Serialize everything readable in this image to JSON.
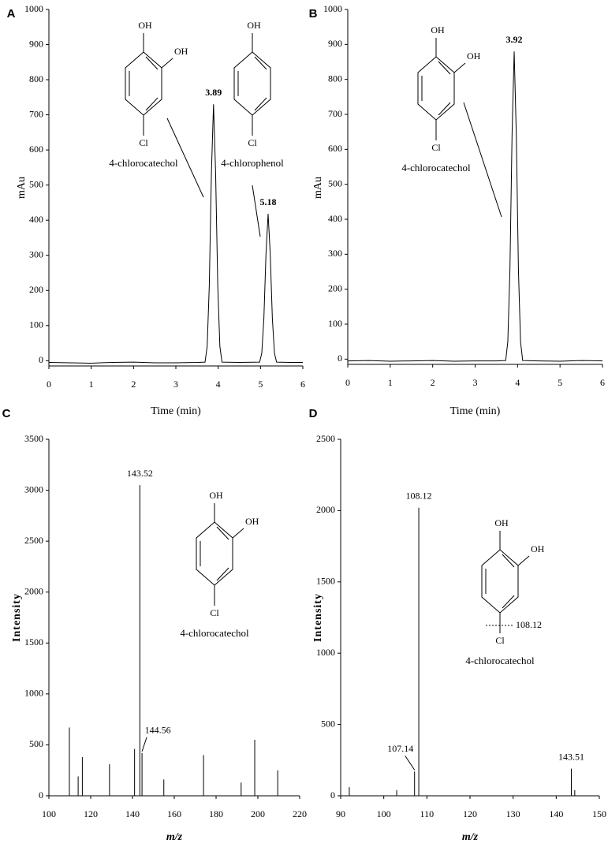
{
  "chart_data": [
    {
      "type": "line",
      "panel": "A",
      "color": "#000000",
      "x": [
        0,
        0.5,
        1,
        1.5,
        2,
        2.5,
        3,
        3.5,
        3.69,
        3.74,
        3.79,
        3.84,
        3.89,
        3.94,
        3.99,
        4.04,
        4.09,
        4.5,
        4.98,
        5.03,
        5.08,
        5.13,
        5.18,
        5.23,
        5.28,
        5.33,
        5.38,
        5.7,
        6
      ],
      "values": [
        -5,
        -6,
        -7,
        -5,
        -4,
        -6,
        -6,
        -5,
        -4,
        41,
        214,
        533,
        730,
        533,
        214,
        41,
        -4,
        -5,
        -4,
        21,
        121,
        305,
        418,
        305,
        121,
        21,
        -4,
        -5,
        -5
      ],
      "xlim": [
        0,
        6
      ],
      "xticks": [
        0,
        1,
        2,
        3,
        4,
        5,
        6
      ],
      "ylim": [
        -15,
        1000
      ],
      "yticks": [
        0,
        100,
        200,
        300,
        400,
        500,
        600,
        700,
        800,
        900,
        1000
      ],
      "xlabel": "Time (min)",
      "ylabel": "mAu",
      "peak_labels": [
        3.89,
        5.18
      ],
      "structures": [
        {
          "name": "4-chlorocatechol",
          "substituents": [
            "OH",
            "OH",
            "Cl"
          ]
        },
        {
          "name": "4-chlorophenol",
          "substituents": [
            "OH",
            "Cl"
          ]
        }
      ]
    },
    {
      "type": "line",
      "panel": "B",
      "color": "#000000",
      "x": [
        0,
        0.5,
        1,
        1.5,
        2,
        2.5,
        3,
        3.5,
        3.72,
        3.77,
        3.82,
        3.87,
        3.92,
        3.97,
        4.02,
        4.07,
        4.12,
        4.5,
        5,
        5.5,
        6
      ],
      "values": [
        -5,
        -4,
        -6,
        -5,
        -4,
        -6,
        -5,
        -5,
        -4,
        50,
        256,
        642,
        880,
        642,
        256,
        50,
        -4,
        -5,
        -6,
        -4,
        -5
      ],
      "xlim": [
        0,
        6
      ],
      "xticks": [
        0,
        1,
        2,
        3,
        4,
        5,
        6
      ],
      "ylim": [
        -15,
        1000
      ],
      "yticks": [
        0,
        100,
        200,
        300,
        400,
        500,
        600,
        700,
        800,
        900,
        1000
      ],
      "xlabel": "Time (min)",
      "ylabel": "mAu",
      "peak_labels": [
        3.92
      ],
      "structures": [
        {
          "name": "4-chlorocatechol",
          "substituents": [
            "OH",
            "OH",
            "Cl"
          ]
        }
      ]
    },
    {
      "type": "stem",
      "panel": "C",
      "color": "#000000",
      "x": [
        109.8,
        114,
        116,
        129,
        141,
        143.52,
        144.56,
        155,
        174,
        192,
        198.5,
        209.5
      ],
      "values": [
        670,
        190,
        380,
        310,
        460,
        3050,
        420,
        160,
        400,
        130,
        550,
        250
      ],
      "xlim": [
        100,
        220
      ],
      "xticks": [
        100,
        120,
        140,
        160,
        180,
        200,
        220
      ],
      "ylim": [
        0,
        3500
      ],
      "yticks": [
        0,
        500,
        1000,
        1500,
        2000,
        2500,
        3000,
        3500
      ],
      "xlabel": "m/z",
      "ylabel": "Intensity",
      "peak_labels": [
        143.52,
        144.56
      ],
      "structures": [
        {
          "name": "4-chlorocatechol",
          "substituents": [
            "OH",
            "OH",
            "Cl"
          ]
        }
      ]
    },
    {
      "type": "stem",
      "panel": "D",
      "color": "#000000",
      "x": [
        92,
        103,
        107.14,
        108.12,
        143.51,
        144.3
      ],
      "values": [
        60,
        40,
        170,
        2020,
        190,
        40
      ],
      "xlim": [
        90,
        150
      ],
      "xticks": [
        90,
        100,
        110,
        120,
        130,
        140,
        150
      ],
      "ylim": [
        0,
        2500
      ],
      "yticks": [
        0,
        500,
        1000,
        1500,
        2000,
        2500
      ],
      "xlabel": "m/z",
      "ylabel": "Intensity",
      "peak_labels": [
        108.12,
        107.14,
        143.51
      ],
      "structures": [
        {
          "name": "4-chlorocatechol",
          "substituents": [
            "OH",
            "OH",
            "Cl"
          ],
          "fragment": 108.12
        }
      ]
    }
  ]
}
